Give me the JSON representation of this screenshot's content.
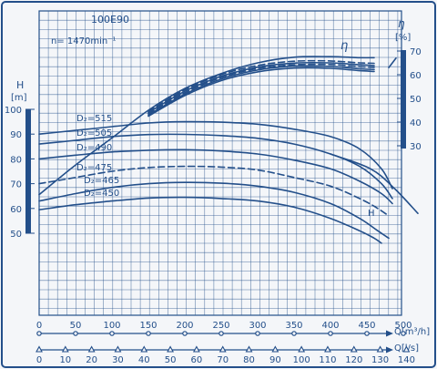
{
  "chart_data": {
    "type": "line",
    "title": "100E90",
    "subtitle": "n= 1470min⁻¹",
    "head_axis": {
      "label": "H",
      "unit": "[m]",
      "ticks": [
        50,
        60,
        70,
        80,
        90,
        100
      ],
      "range": [
        50,
        100
      ]
    },
    "efficiency_axis": {
      "label": "η",
      "unit": "[%]",
      "ticks": [
        30,
        40,
        50,
        60,
        70
      ],
      "range": [
        30,
        70
      ]
    },
    "flow_axis_m3h": {
      "label": "Q[m³/h]",
      "ticks": [
        0,
        50,
        100,
        150,
        200,
        250,
        300,
        350,
        400,
        450,
        500
      ]
    },
    "flow_axis_ls": {
      "label": "Q[l/s]",
      "ticks": [
        0,
        10,
        20,
        30,
        40,
        50,
        60,
        70,
        80,
        90,
        100,
        110,
        120,
        130,
        140
      ]
    },
    "grid": true,
    "curve_labels": {
      "efficiency": "η",
      "head": "H"
    },
    "series": [
      {
        "name": "D₂=515",
        "dash": false,
        "x": [
          0,
          50,
          100,
          150,
          200,
          250,
          300,
          350,
          400,
          440,
          470,
          485
        ],
        "y": [
          90,
          91.5,
          93,
          94.5,
          95,
          94.8,
          94,
          92,
          89,
          84,
          76,
          68
        ]
      },
      {
        "name": "D₂=505",
        "dash": false,
        "x": [
          0,
          50,
          100,
          150,
          200,
          250,
          300,
          350,
          400,
          440,
          470,
          485
        ],
        "y": [
          86,
          87.5,
          89,
          89.8,
          89.9,
          89.4,
          88.3,
          86,
          82,
          77,
          70,
          64
        ]
      },
      {
        "name": "D₂=490",
        "dash": false,
        "x": [
          0,
          50,
          100,
          150,
          200,
          250,
          300,
          350,
          400,
          440,
          470,
          485
        ],
        "y": [
          80,
          81.5,
          82.8,
          83.5,
          83.7,
          83.2,
          82,
          79.5,
          76,
          71,
          66,
          62
        ]
      },
      {
        "name": "D₂=475",
        "dash": true,
        "x": [
          0,
          50,
          100,
          150,
          200,
          250,
          300,
          350,
          400,
          440,
          465,
          480
        ],
        "y": [
          70,
          72.5,
          75,
          76.5,
          77,
          76.7,
          75.5,
          72.5,
          69,
          64,
          60,
          57
        ]
      },
      {
        "name": "D₂=465",
        "dash": false,
        "x": [
          0,
          50,
          100,
          150,
          200,
          250,
          300,
          350,
          400,
          440,
          465,
          480
        ],
        "y": [
          63,
          66,
          68.5,
          70,
          70.5,
          70.2,
          69,
          66.5,
          62,
          56,
          51,
          48
        ]
      },
      {
        "name": "D₂=450",
        "dash": false,
        "x": [
          0,
          50,
          100,
          150,
          200,
          250,
          300,
          350,
          400,
          440,
          460,
          470
        ],
        "y": [
          59.5,
          61.5,
          63,
          64.2,
          64.5,
          64,
          63,
          60.5,
          56,
          51,
          48,
          46
        ]
      },
      {
        "name": "efficiency D₂=515",
        "dash": false,
        "x": [
          0,
          50,
          100,
          150,
          200,
          250,
          300,
          350,
          400,
          440,
          460
        ],
        "y": [
          9.4,
          21.9,
          33.3,
          45,
          54.2,
          60.5,
          65,
          67.4,
          67.6,
          67.2,
          67.2
        ]
      },
      {
        "name": "efficiency D₂=505",
        "dash": true,
        "x": [
          150,
          200,
          250,
          300,
          350,
          400,
          440,
          460
        ],
        "y": [
          44.5,
          53.6,
          60,
          63.9,
          65.7,
          65.8,
          65,
          64.8
        ]
      },
      {
        "name": "efficiency D₂=490",
        "dash": false,
        "x": [
          150,
          200,
          250,
          300,
          350,
          400,
          440,
          460
        ],
        "y": [
          44,
          53,
          59.3,
          63.2,
          64.9,
          65,
          64.2,
          63.9
        ]
      },
      {
        "name": "efficiency D₂=475",
        "dash": true,
        "x": [
          150,
          200,
          250,
          300,
          350,
          400,
          440,
          460
        ],
        "y": [
          43.5,
          52.4,
          58.8,
          62.6,
          64.2,
          64.3,
          63.4,
          63.1
        ]
      },
      {
        "name": "efficiency D₂=465",
        "dash": false,
        "x": [
          150,
          200,
          250,
          300,
          350,
          400,
          440,
          460
        ],
        "y": [
          43,
          51.8,
          58.2,
          62,
          63.6,
          63.5,
          62.5,
          62.2
        ]
      },
      {
        "name": "efficiency D₂=450",
        "dash": false,
        "x": [
          150,
          200,
          250,
          300,
          350,
          400,
          440,
          460
        ],
        "y": [
          42.5,
          51.2,
          57.5,
          61.2,
          62.8,
          62.7,
          61.7,
          61.4
        ]
      },
      {
        "name": "efficiency boundary",
        "dash": false,
        "x": [
          480,
          490
        ],
        "y": [
          63,
          67
        ]
      },
      {
        "name": "H boundary",
        "dash": false,
        "x": [
          400,
          455,
          488,
          520
        ],
        "y": [
          82,
          76,
          68,
          58
        ]
      }
    ]
  }
}
